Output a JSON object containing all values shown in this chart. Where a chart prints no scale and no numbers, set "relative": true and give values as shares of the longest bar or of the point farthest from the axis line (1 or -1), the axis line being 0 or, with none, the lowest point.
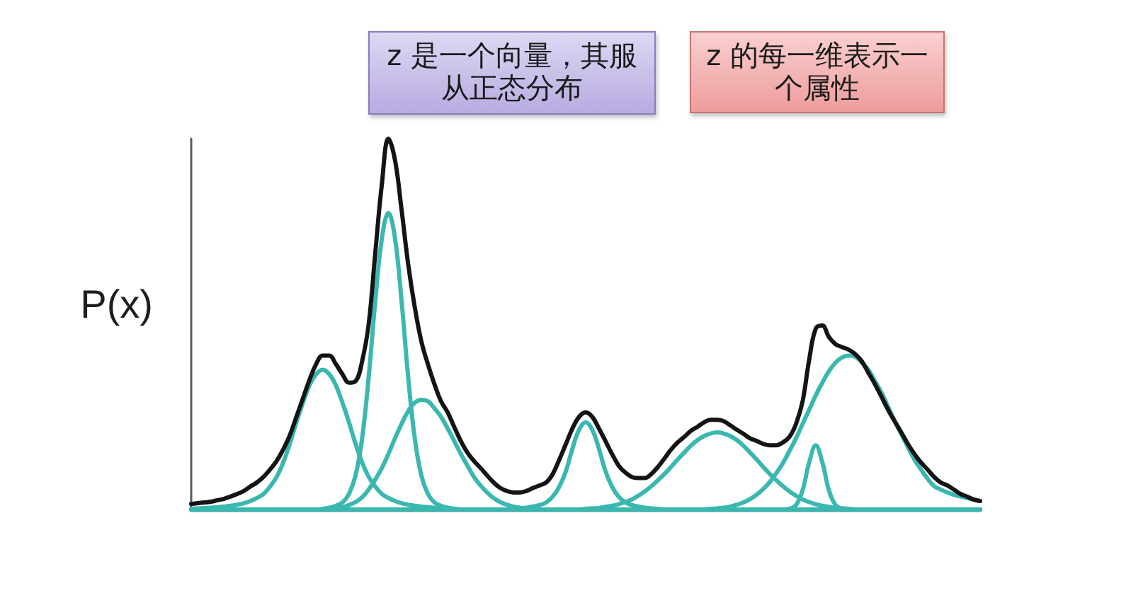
{
  "chart_data": {
    "type": "line",
    "relative": true,
    "ylabel": "P(x)",
    "line_style": "solid",
    "annotations": [
      "z 是一个向量，其服从正态分布",
      "z 的每一维表示一个属性"
    ],
    "categories": [
      null,
      null,
      null,
      null,
      null,
      null,
      null,
      null,
      null,
      null,
      null,
      null,
      null,
      null,
      null,
      null,
      null,
      null,
      null,
      null,
      null,
      null,
      null,
      null,
      null,
      null,
      null,
      null,
      null,
      null,
      null,
      null,
      null,
      null,
      null,
      null,
      null,
      null,
      null,
      null,
      null,
      null,
      null,
      null,
      null,
      null,
      null,
      null,
      null,
      null,
      null,
      null,
      null,
      null,
      null,
      null,
      null,
      null,
      null,
      null,
      null,
      null,
      null,
      null,
      null,
      null,
      null,
      null,
      null,
      null,
      null,
      null,
      null,
      null,
      null,
      null,
      null,
      null,
      null,
      null,
      null,
      null,
      null,
      null,
      null,
      null,
      null,
      null,
      null,
      null,
      null,
      null,
      null,
      null,
      null,
      null,
      null,
      null,
      null,
      null,
      null,
      null,
      null,
      null,
      null,
      null,
      null,
      null,
      null,
      null,
      null,
      null,
      null,
      null,
      null,
      null,
      null,
      null,
      null,
      null,
      null
    ],
    "series": [
      {
        "color": "#3ab8b0",
        "values": [
          0.002,
          0.003,
          0.004,
          0.005,
          0.006,
          0.008,
          0.01,
          0.013,
          0.017,
          0.023,
          0.031,
          0.042,
          0.062,
          0.088,
          0.127,
          0.177,
          0.235,
          0.288,
          0.335,
          0.365,
          0.377,
          0.365,
          0.335,
          0.288,
          0.235,
          0.177,
          0.127,
          0.088,
          0.062,
          0.042,
          0.031,
          0.023,
          0.017,
          0.013,
          0.01,
          0.008,
          0.006,
          0.005,
          0.004,
          0.003,
          0.002,
          0,
          0,
          0,
          0,
          0,
          0,
          0,
          0,
          0,
          0,
          0,
          0,
          0,
          0,
          0,
          0,
          0,
          0,
          0,
          0,
          0,
          0,
          0,
          0,
          0,
          0,
          0,
          0,
          0,
          0,
          0,
          0,
          0,
          0,
          0,
          0,
          0,
          0,
          0,
          0,
          0,
          0,
          0,
          0,
          0,
          0,
          0,
          0,
          0,
          0,
          0,
          0,
          0,
          0,
          0,
          0,
          0,
          0,
          0,
          0,
          0,
          0,
          0,
          0,
          0,
          0,
          0,
          0,
          0,
          0,
          0,
          0,
          0,
          0,
          0,
          0,
          0,
          0,
          0,
          0
        ]
      },
      {
        "color": "#3ab8b0",
        "values": [
          0,
          0,
          0,
          0,
          0,
          0,
          0,
          0,
          0,
          0,
          0,
          0,
          0,
          0,
          0,
          0,
          0,
          0,
          0,
          0,
          0.002,
          0.005,
          0.01,
          0.019,
          0.042,
          0.092,
          0.192,
          0.358,
          0.562,
          0.731,
          0.8,
          0.731,
          0.562,
          0.358,
          0.192,
          0.092,
          0.042,
          0.019,
          0.01,
          0.005,
          0.002,
          0,
          0,
          0,
          0,
          0,
          0,
          0,
          0,
          0,
          0,
          0,
          0,
          0,
          0,
          0,
          0,
          0,
          0,
          0,
          0,
          0,
          0,
          0,
          0,
          0,
          0,
          0,
          0,
          0,
          0,
          0,
          0,
          0,
          0,
          0,
          0,
          0,
          0,
          0,
          0,
          0,
          0,
          0,
          0,
          0,
          0,
          0,
          0,
          0,
          0,
          0,
          0,
          0,
          0,
          0,
          0,
          0,
          0,
          0,
          0,
          0,
          0,
          0,
          0,
          0,
          0,
          0,
          0,
          0,
          0,
          0,
          0,
          0,
          0,
          0,
          0,
          0,
          0,
          0,
          0
        ]
      },
      {
        "color": "#3ab8b0",
        "values": [
          0,
          0,
          0,
          0,
          0,
          0,
          0,
          0,
          0,
          0,
          0,
          0,
          0,
          0,
          0,
          0,
          0,
          0,
          0,
          0,
          0,
          0.002,
          0.003,
          0.006,
          0.012,
          0.02,
          0.033,
          0.054,
          0.081,
          0.112,
          0.15,
          0.192,
          0.231,
          0.265,
          0.288,
          0.296,
          0.292,
          0.273,
          0.25,
          0.219,
          0.185,
          0.15,
          0.119,
          0.088,
          0.065,
          0.046,
          0.031,
          0.02,
          0.013,
          0.008,
          0.005,
          0.002,
          0,
          0,
          0,
          0,
          0,
          0,
          0,
          0,
          0,
          0,
          0,
          0,
          0,
          0,
          0,
          0,
          0,
          0,
          0,
          0,
          0,
          0,
          0,
          0,
          0,
          0,
          0,
          0,
          0,
          0,
          0,
          0,
          0,
          0,
          0,
          0,
          0,
          0,
          0,
          0,
          0,
          0,
          0,
          0,
          0,
          0,
          0,
          0,
          0,
          0,
          0,
          0,
          0,
          0,
          0,
          0,
          0,
          0,
          0,
          0,
          0,
          0,
          0,
          0,
          0,
          0,
          0,
          0,
          0
        ]
      },
      {
        "color": "#3ab8b0",
        "values": [
          0,
          0,
          0,
          0,
          0,
          0,
          0,
          0,
          0,
          0,
          0,
          0,
          0,
          0,
          0,
          0,
          0,
          0,
          0,
          0,
          0,
          0,
          0,
          0,
          0,
          0,
          0,
          0,
          0,
          0,
          0,
          0,
          0,
          0,
          0,
          0,
          0,
          0,
          0,
          0,
          0,
          0,
          0,
          0,
          0,
          0,
          0,
          0,
          0,
          0.002,
          0.003,
          0.005,
          0.008,
          0.012,
          0.019,
          0.035,
          0.062,
          0.104,
          0.165,
          0.215,
          0.235,
          0.215,
          0.165,
          0.104,
          0.062,
          0.035,
          0.019,
          0.012,
          0.008,
          0.005,
          0.003,
          0.002,
          0,
          0,
          0,
          0,
          0,
          0,
          0,
          0,
          0,
          0,
          0,
          0,
          0,
          0,
          0,
          0,
          0,
          0,
          0,
          0,
          0,
          0,
          0,
          0,
          0,
          0,
          0,
          0,
          0,
          0,
          0,
          0,
          0,
          0,
          0,
          0,
          0,
          0,
          0,
          0,
          0,
          0,
          0,
          0,
          0,
          0,
          0,
          0,
          0
        ]
      },
      {
        "color": "#3ab8b0",
        "values": [
          0,
          0,
          0,
          0,
          0,
          0,
          0,
          0,
          0,
          0,
          0,
          0,
          0,
          0,
          0,
          0,
          0,
          0,
          0,
          0,
          0,
          0,
          0,
          0,
          0,
          0,
          0,
          0,
          0,
          0,
          0,
          0,
          0,
          0,
          0,
          0,
          0,
          0,
          0,
          0,
          0,
          0,
          0,
          0,
          0,
          0,
          0,
          0,
          0,
          0,
          0,
          0,
          0,
          0,
          0,
          0,
          0,
          0,
          0,
          0,
          0.002,
          0.003,
          0.004,
          0.007,
          0.01,
          0.014,
          0.02,
          0.027,
          0.037,
          0.049,
          0.063,
          0.079,
          0.096,
          0.115,
          0.135,
          0.154,
          0.172,
          0.187,
          0.198,
          0.205,
          0.208,
          0.205,
          0.198,
          0.187,
          0.172,
          0.154,
          0.135,
          0.115,
          0.096,
          0.079,
          0.063,
          0.049,
          0.037,
          0.027,
          0.02,
          0.014,
          0.01,
          0.007,
          0.004,
          0.003,
          0.002,
          0,
          0,
          0,
          0,
          0,
          0,
          0,
          0,
          0,
          0,
          0,
          0,
          0,
          0,
          0,
          0,
          0,
          0,
          0,
          0
        ]
      },
      {
        "color": "#3ab8b0",
        "values": [
          0,
          0,
          0,
          0,
          0,
          0,
          0,
          0,
          0,
          0,
          0,
          0,
          0,
          0,
          0,
          0,
          0,
          0,
          0,
          0,
          0,
          0,
          0,
          0,
          0,
          0,
          0,
          0,
          0,
          0,
          0,
          0,
          0,
          0,
          0,
          0,
          0,
          0,
          0,
          0,
          0,
          0,
          0,
          0,
          0,
          0,
          0,
          0,
          0,
          0,
          0,
          0,
          0,
          0,
          0,
          0,
          0,
          0,
          0,
          0,
          0,
          0,
          0,
          0,
          0,
          0,
          0,
          0,
          0,
          0,
          0,
          0,
          0,
          0,
          0,
          0,
          0,
          0,
          0,
          0,
          0,
          0,
          0,
          0,
          0,
          0,
          0,
          0,
          0,
          0,
          0,
          0.002,
          0.012,
          0.052,
          0.127,
          0.173,
          0.127,
          0.052,
          0.012,
          0.002,
          0,
          0,
          0,
          0,
          0,
          0,
          0,
          0,
          0,
          0,
          0,
          0,
          0,
          0,
          0,
          0,
          0,
          0,
          0,
          0,
          0
        ]
      },
      {
        "color": "#3ab8b0",
        "values": [
          0,
          0,
          0,
          0,
          0,
          0,
          0,
          0,
          0,
          0,
          0,
          0,
          0,
          0,
          0,
          0,
          0,
          0,
          0,
          0,
          0,
          0,
          0,
          0,
          0,
          0,
          0,
          0,
          0,
          0,
          0,
          0,
          0,
          0,
          0,
          0,
          0,
          0,
          0,
          0,
          0,
          0,
          0,
          0,
          0,
          0,
          0,
          0,
          0,
          0,
          0,
          0,
          0,
          0,
          0,
          0,
          0,
          0,
          0,
          0,
          0,
          0,
          0,
          0,
          0,
          0,
          0,
          0,
          0,
          0,
          0,
          0,
          0,
          0,
          0,
          0,
          0,
          0,
          0,
          0.002,
          0.003,
          0.005,
          0.008,
          0.013,
          0.019,
          0.028,
          0.04,
          0.055,
          0.074,
          0.098,
          0.125,
          0.158,
          0.192,
          0.231,
          0.269,
          0.308,
          0.342,
          0.373,
          0.396,
          0.41,
          0.415,
          0.412,
          0.396,
          0.377,
          0.346,
          0.315,
          0.277,
          0.238,
          0.204,
          0.169,
          0.135,
          0.108,
          0.083,
          0.063,
          0.054,
          0.046,
          0.04,
          0.035,
          0.031,
          0.027,
          0.023
        ]
      },
      {
        "color": "#141414",
        "values": [
          0.015,
          0.017,
          0.019,
          0.021,
          0.025,
          0.029,
          0.035,
          0.042,
          0.05,
          0.062,
          0.073,
          0.088,
          0.108,
          0.131,
          0.162,
          0.2,
          0.25,
          0.3,
          0.35,
          0.392,
          0.415,
          0.415,
          0.392,
          0.365,
          0.342,
          0.346,
          0.4,
          0.5,
          0.692,
          0.877,
          1,
          0.942,
          0.808,
          0.662,
          0.546,
          0.454,
          0.392,
          0.338,
          0.292,
          0.262,
          0.223,
          0.185,
          0.154,
          0.131,
          0.112,
          0.092,
          0.073,
          0.058,
          0.05,
          0.046,
          0.046,
          0.05,
          0.058,
          0.065,
          0.073,
          0.096,
          0.135,
          0.177,
          0.219,
          0.25,
          0.262,
          0.25,
          0.219,
          0.185,
          0.15,
          0.119,
          0.1,
          0.088,
          0.085,
          0.085,
          0.096,
          0.115,
          0.138,
          0.162,
          0.181,
          0.196,
          0.212,
          0.223,
          0.235,
          0.242,
          0.242,
          0.238,
          0.227,
          0.215,
          0.204,
          0.192,
          0.185,
          0.177,
          0.173,
          0.173,
          0.181,
          0.196,
          0.231,
          0.292,
          0.404,
          0.488,
          0.496,
          0.465,
          0.446,
          0.438,
          0.431,
          0.419,
          0.4,
          0.369,
          0.338,
          0.304,
          0.269,
          0.238,
          0.208,
          0.177,
          0.15,
          0.127,
          0.108,
          0.088,
          0.073,
          0.065,
          0.054,
          0.042,
          0.035,
          0.027,
          0.023
        ]
      }
    ]
  }
}
